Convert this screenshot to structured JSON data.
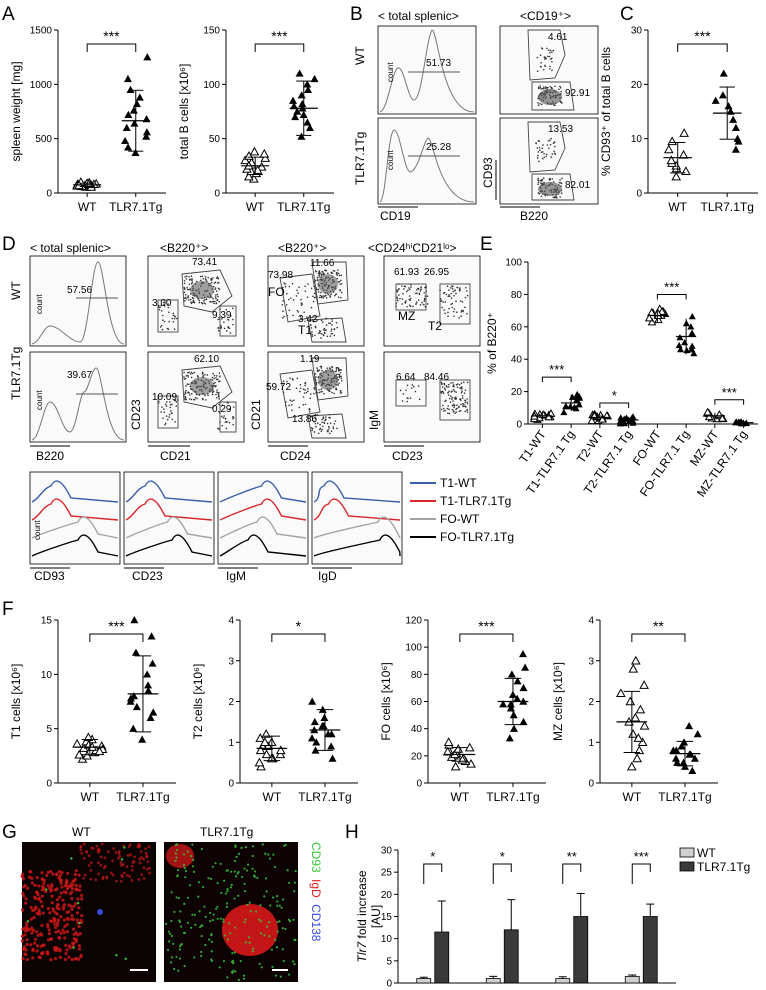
{
  "figure": {
    "panel_letters": [
      "A",
      "B",
      "C",
      "D",
      "E",
      "F",
      "G",
      "H"
    ]
  },
  "sig": {
    "three": "***",
    "two": "**",
    "one": "*"
  },
  "groups": {
    "wt": "WT",
    "tg": "TLR7.1Tg"
  },
  "panelA": {
    "spleen": {
      "ylabel": "spleen weight [mg]",
      "ticks": [
        "0",
        "500",
        "1000",
        "1500"
      ],
      "sig": "***"
    },
    "bcells": {
      "ylabel": "total B cells [x10⁶]",
      "ticks": [
        "0",
        "50",
        "100",
        "150"
      ],
      "sig": "***"
    }
  },
  "panelB": {
    "header_left": "< total splenic>",
    "header_right": "<CD19⁺>",
    "row_wt": "WT",
    "row_tg": "TLR7.1Tg",
    "count": "count",
    "wt_gate": "51.73",
    "tg_gate": "25.28",
    "wt_upper": "4.61",
    "wt_lower": "92.91",
    "tg_upper": "13.53",
    "tg_lower": "82.01",
    "x_left": "CD19",
    "x_right": "B220",
    "y_right": "CD93"
  },
  "panelC": {
    "ylabel": "% CD93⁺ of total B cells",
    "ticks": [
      "0",
      "10",
      "20",
      "30"
    ],
    "sig": "***"
  },
  "panelD": {
    "headers": [
      "< total splenic>",
      "<B220⁺>",
      "<B220⁺>",
      "<CD24ʰⁱCD21ˡᵒ>"
    ],
    "row_wt": "WT",
    "row_tg": "TLR7.1Tg",
    "count": "count",
    "wt": {
      "h": "57.56",
      "c2a": "73.41",
      "c2b": "3.00",
      "c2c": "9.39",
      "c3a": "73.98",
      "c3b": "11.66",
      "c3c": "3.42",
      "c3fo": "FO",
      "c3t1": "T1",
      "c4a": "61.93",
      "c4b": "26.95",
      "c4mz": "MZ",
      "c4t2": "T2"
    },
    "tg": {
      "h": "39.67",
      "c2a": "62.10",
      "c2b": "10.09",
      "c2c": "0.29",
      "c3a": "59.72",
      "c3b": "1.19",
      "c3c": "13.86",
      "c4a": "6.64",
      "c4b": "84.46"
    },
    "x_labels": [
      "B220",
      "CD21",
      "CD24",
      "CD23"
    ],
    "y_labels": [
      "CD23",
      "CD21",
      "IgM"
    ],
    "hist_x": [
      "CD93",
      "CD23",
      "IgM",
      "IgD"
    ],
    "legend": [
      {
        "label": "T1-WT",
        "color": "#3a5fa8"
      },
      {
        "label": "T1-TLR7.1Tg",
        "color": "#d8262b"
      },
      {
        "label": "FO-WT",
        "color": "#a3a3a3"
      },
      {
        "label": "FO-TLR7.1Tg",
        "color": "#000000"
      }
    ]
  },
  "panelE": {
    "ylabel": "% of B220⁺",
    "ticks": [
      "0",
      "20",
      "40",
      "60",
      "80",
      "100"
    ],
    "categories": [
      "T1-WT",
      "T1-TLR7.1 Tg",
      "T2-WT",
      "T2-TLR7.1 Tg",
      "FO-WT",
      "FO-TLR7.1 Tg",
      "MZ-WT",
      "MZ-TLR7.1 Tg"
    ],
    "sigs": [
      "***",
      "*",
      "***",
      "***"
    ]
  },
  "panelF": [
    {
      "ylabel": "T1 cells [x10⁶]",
      "ticks": [
        "0",
        "5",
        "10",
        "15"
      ],
      "sig": "***"
    },
    {
      "ylabel": "T2 cells [x10⁶]",
      "ticks": [
        "0",
        "1",
        "2",
        "3",
        "4"
      ],
      "sig": "*"
    },
    {
      "ylabel": "FO cells [x10⁶]",
      "ticks": [
        "0",
        "20",
        "40",
        "60",
        "80",
        "100",
        "120"
      ],
      "sig": "***"
    },
    {
      "ylabel": "MZ cells [x10⁶]",
      "ticks": [
        "0",
        "1",
        "2",
        "3",
        "4"
      ],
      "sig": "**"
    }
  ],
  "panelG": {
    "wt": "WT",
    "tg": "TLR7.1Tg",
    "stain1": "CD93",
    "stain2": "IgD",
    "stain3": "CD138",
    "c1": "#39c439",
    "c2": "#e02020",
    "c3": "#3a4ad8"
  },
  "panelH": {
    "ylabel_italic": "Tlr7",
    "ylabel_rest": " fold increase",
    "ylabel2": "[AU]",
    "ticks": [
      "0",
      "5",
      "10",
      "15",
      "20",
      "25",
      "30"
    ],
    "sigs": [
      "*",
      "*",
      "**",
      "***"
    ],
    "legend": [
      {
        "label": "WT",
        "color": "#cfcfcf"
      },
      {
        "label": "TLR7.1Tg",
        "color": "#3a3a3a"
      }
    ]
  },
  "chart_data": [
    {
      "type": "scatter",
      "panel": "A-left",
      "categories": [
        "WT",
        "TLR7.1Tg"
      ],
      "ylabel": "spleen weight [mg]",
      "ylim": [
        0,
        1500
      ],
      "series": [
        {
          "values": [
            60,
            70,
            80,
            90,
            55,
            65,
            75,
            85,
            95,
            70,
            60,
            80,
            75,
            65,
            90,
            100,
            55,
            70,
            80
          ]
        },
        {
          "values": [
            370,
            420,
            480,
            520,
            560,
            600,
            640,
            680,
            720,
            760,
            820,
            880,
            950,
            1050,
            1250
          ]
        }
      ],
      "mean": [
        75,
        665
      ],
      "sd": [
        15,
        280
      ]
    },
    {
      "type": "scatter",
      "panel": "A-right",
      "categories": [
        "WT",
        "TLR7.1Tg"
      ],
      "ylabel": "total B cells [x10⁶]",
      "ylim": [
        0,
        150
      ],
      "series": [
        {
          "values": [
            13,
            15,
            18,
            20,
            22,
            24,
            26,
            28,
            30,
            32,
            34,
            36,
            38,
            25,
            21
          ]
        },
        {
          "values": [
            52,
            60,
            65,
            70,
            75,
            78,
            80,
            85,
            90,
            95,
            100,
            105,
            110,
            82,
            72
          ]
        }
      ],
      "mean": [
        25,
        78
      ],
      "sd": [
        8,
        25
      ]
    },
    {
      "type": "scatter",
      "panel": "C",
      "categories": [
        "WT",
        "TLR7.1Tg"
      ],
      "ylabel": "% CD93⁺ of total B cells",
      "ylim": [
        0,
        30
      ],
      "series": [
        {
          "values": [
            3,
            4,
            4.5,
            5,
            5.5,
            6,
            7,
            8,
            9.5,
            11
          ]
        },
        {
          "values": [
            8,
            9.5,
            10,
            12,
            13.5,
            15,
            16,
            17,
            18,
            22
          ]
        }
      ],
      "mean": [
        6.5,
        14.7
      ],
      "sd": [
        2.8,
        4.8
      ]
    },
    {
      "type": "scatter",
      "panel": "E",
      "categories": [
        "T1-WT",
        "T1-TLR7.1 Tg",
        "T2-WT",
        "T2-TLR7.1 Tg",
        "FO-WT",
        "FO-TLR7.1 Tg",
        "MZ-WT",
        "MZ-TLR7.1 Tg"
      ],
      "ylabel": "% of B220⁺",
      "ylim": [
        0,
        100
      ],
      "mean": [
        5,
        13,
        4,
        2.5,
        67,
        54,
        5,
        0.8
      ],
      "sd": [
        2,
        5,
        2,
        2,
        4,
        11,
        2,
        0.5
      ]
    },
    {
      "type": "scatter",
      "panel": "F-T1",
      "categories": [
        "WT",
        "TLR7.1Tg"
      ],
      "ylabel": "T1 cells [x10⁶]",
      "ylim": [
        0,
        15
      ],
      "series": [
        {
          "values": [
            2.2,
            2.5,
            2.8,
            3,
            3.2,
            3.4,
            3.6,
            3.8,
            4,
            4.2,
            2.6,
            3.1,
            3.5,
            2.9,
            3.3
          ]
        },
        {
          "values": [
            4,
            5,
            6,
            6.5,
            7,
            7.5,
            8,
            8.5,
            9,
            10,
            11,
            12,
            13.5,
            15,
            7.8
          ]
        }
      ],
      "mean": [
        3.3,
        8.2
      ],
      "sd": [
        0.7,
        3.5
      ]
    },
    {
      "type": "scatter",
      "panel": "F-T2",
      "categories": [
        "WT",
        "TLR7.1Tg"
      ],
      "ylabel": "T2 cells [x10⁶]",
      "ylim": [
        0,
        4
      ],
      "series": [
        {
          "values": [
            0.4,
            0.5,
            0.6,
            0.7,
            0.8,
            0.9,
            1.0,
            1.1,
            1.2,
            0.6,
            0.8,
            0.9,
            1.0,
            0.7
          ]
        },
        {
          "values": [
            0.6,
            0.8,
            1.0,
            1.1,
            1.2,
            1.3,
            1.4,
            1.5,
            1.6,
            1.8,
            2.0,
            1.2,
            1.4,
            0.9
          ]
        }
      ],
      "mean": [
        0.85,
        1.3
      ],
      "sd": [
        0.3,
        0.5
      ]
    },
    {
      "type": "scatter",
      "panel": "F-FO",
      "categories": [
        "WT",
        "TLR7.1Tg"
      ],
      "ylabel": "FO cells [x10⁶]",
      "ylim": [
        0,
        120
      ],
      "series": [
        {
          "values": [
            12,
            14,
            16,
            18,
            20,
            22,
            24,
            26,
            28,
            30,
            19,
            21,
            23,
            17,
            25
          ]
        },
        {
          "values": [
            33,
            40,
            45,
            50,
            55,
            58,
            60,
            62,
            65,
            70,
            75,
            80,
            85,
            95,
            58
          ]
        }
      ],
      "mean": [
        21,
        60
      ],
      "sd": [
        5,
        17
      ]
    },
    {
      "type": "scatter",
      "panel": "F-MZ",
      "categories": [
        "WT",
        "TLR7.1Tg"
      ],
      "ylabel": "MZ cells [x10⁶]",
      "ylim": [
        0,
        4
      ],
      "series": [
        {
          "values": [
            0.4,
            0.6,
            0.8,
            1.0,
            1.2,
            1.4,
            1.6,
            1.8,
            2.0,
            2.2,
            2.4,
            2.8,
            3.0,
            1.5,
            1.1
          ]
        },
        {
          "values": [
            0.3,
            0.4,
            0.5,
            0.6,
            0.7,
            0.8,
            0.9,
            1.0,
            1.2,
            1.4,
            0.6,
            0.7,
            0.8,
            0.5
          ]
        }
      ],
      "mean": [
        1.5,
        0.72
      ],
      "sd": [
        0.75,
        0.3
      ]
    },
    {
      "type": "bar",
      "panel": "H",
      "categories": [
        "T1",
        "T2",
        "FO",
        "MZ"
      ],
      "ylabel": "Tlr7 fold increase [AU]",
      "ylim": [
        0,
        30
      ],
      "series": [
        {
          "name": "WT",
          "values": [
            1,
            1,
            1,
            1.5
          ],
          "sd": [
            0.3,
            0.5,
            0.4,
            0.3
          ]
        },
        {
          "name": "TLR7.1Tg",
          "values": [
            11.5,
            12,
            15,
            15
          ],
          "sd": [
            7,
            6.8,
            5.2,
            2.8
          ]
        }
      ]
    }
  ]
}
